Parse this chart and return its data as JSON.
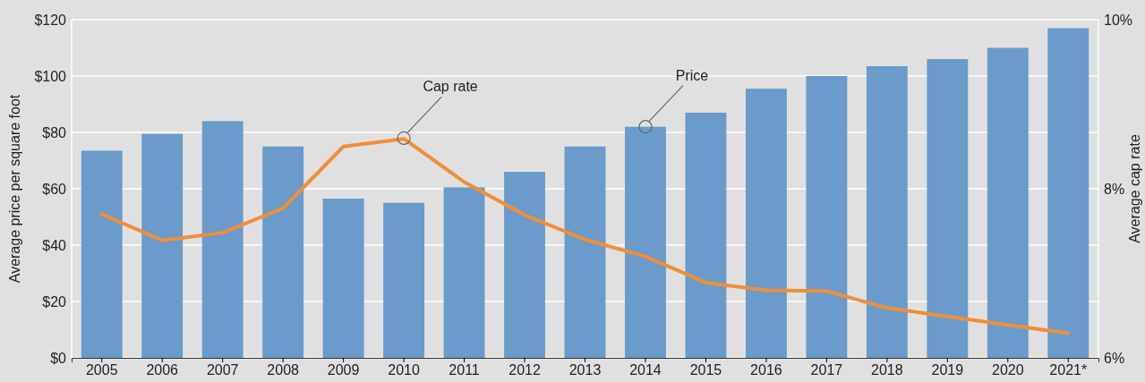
{
  "chart_data": {
    "type": "bar",
    "ylabel": "Average price per square foot",
    "y2label": "Average cap rate",
    "categories": [
      "2005",
      "2006",
      "2007",
      "2008",
      "2009",
      "2010",
      "2011",
      "2012",
      "2013",
      "2014",
      "2015",
      "2016",
      "2017",
      "2018",
      "2019",
      "2020",
      "2021*"
    ],
    "series": [
      {
        "color": "#6a9bca",
        "values": [
          73.5,
          79.5,
          84,
          75,
          56.5,
          55,
          60.5,
          66,
          75,
          82,
          87,
          95.5,
          100,
          103.5,
          106,
          110,
          117
        ]
      },
      {
        "type": "line",
        "axis": "y2",
        "color": "#ef8f3a",
        "values": [
          7.7,
          7.39,
          7.48,
          7.77,
          8.5,
          8.59,
          8.08,
          7.69,
          7.4,
          7.2,
          6.89,
          6.8,
          6.79,
          6.59,
          6.49,
          6.39,
          6.29
        ]
      }
    ],
    "ylim": [
      0,
      120
    ],
    "yticks": [
      {
        "value": 0,
        "label": "$0"
      },
      {
        "value": 20,
        "label": "$20"
      },
      {
        "value": 40,
        "label": "$40"
      },
      {
        "value": 60,
        "label": "$60"
      },
      {
        "value": 80,
        "label": "$80"
      },
      {
        "value": 100,
        "label": "$100"
      },
      {
        "value": 120,
        "label": "$120"
      }
    ],
    "y2lim": [
      6,
      10
    ],
    "y2ticks": [
      {
        "value": 6,
        "label": "6%"
      },
      {
        "value": 8,
        "label": "8%"
      },
      {
        "value": 10,
        "label": "10%"
      }
    ],
    "grid": "y",
    "annotations": [
      {
        "text": "Cap rate",
        "x": "2010",
        "y": 78
      },
      {
        "text": "Price",
        "x": "2014",
        "y": 82
      }
    ]
  }
}
